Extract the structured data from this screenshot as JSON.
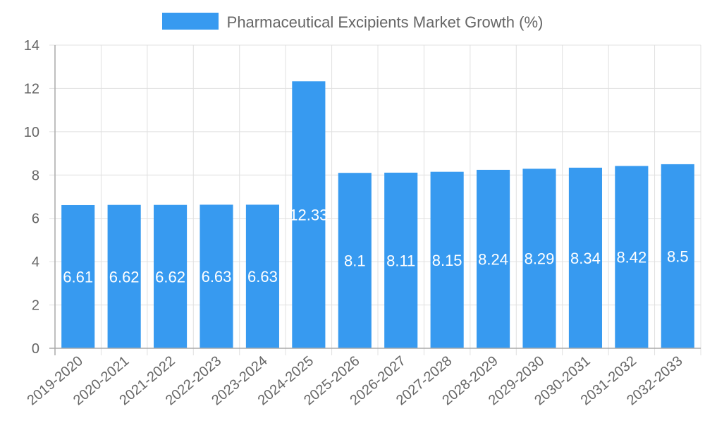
{
  "legend": {
    "label": "Pharmaceutical Excipients Market Growth (%)",
    "color": "#379af0"
  },
  "chart_data": {
    "type": "bar",
    "title": "",
    "xlabel": "",
    "ylabel": "",
    "ylim": [
      0,
      14
    ],
    "yticks": [
      0,
      2,
      4,
      6,
      8,
      10,
      12,
      14
    ],
    "grid": true,
    "legend_position": "top",
    "categories": [
      "2019-2020",
      "2020-2021",
      "2021-2022",
      "2022-2023",
      "2023-2024",
      "2024-2025",
      "2025-2026",
      "2026-2027",
      "2027-2028",
      "2028-2029",
      "2029-2030",
      "2030-2031",
      "2031-2032",
      "2032-2033"
    ],
    "series": [
      {
        "name": "Pharmaceutical Excipients Market Growth (%)",
        "color": "#379af0",
        "values": [
          6.61,
          6.62,
          6.62,
          6.63,
          6.63,
          12.33,
          8.1,
          8.11,
          8.15,
          8.24,
          8.29,
          8.34,
          8.42,
          8.5
        ]
      }
    ]
  }
}
